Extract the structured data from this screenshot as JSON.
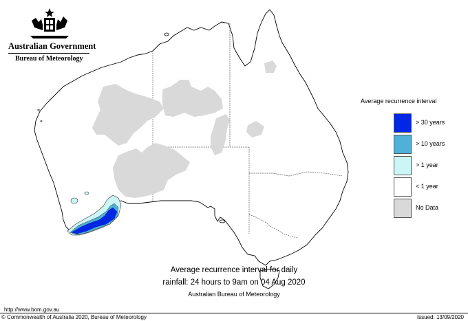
{
  "header": {
    "government": "Australian Government",
    "bureau": "Bureau of Meteorology"
  },
  "map": {
    "subject": "Australia",
    "colors": {
      "land": "#ffffff",
      "coast": "#000000",
      "state_border": "#555555",
      "no_data": "#d9d9d9",
      "gt_1_year": "#ccf5f5",
      "gt_10_years": "#4fb0d8",
      "gt_30_years": "#0026e6"
    }
  },
  "legend": {
    "title": "Average recurrence interval",
    "items": [
      {
        "label": "> 30 years",
        "color": "#0026e6"
      },
      {
        "label": "> 10 years",
        "color": "#4fb0d8"
      },
      {
        "label": "> 1 year",
        "color": "#ccf5f5"
      },
      {
        "label": "< 1 year",
        "color": "#ffffff"
      },
      {
        "label": "No Data",
        "color": "#d9d9d9"
      }
    ]
  },
  "caption": {
    "line1": "Average recurrence interval for daily",
    "line2": "rainfall: 24 hours to 9am on 04 Aug 2020",
    "line3": "Australian Bureau of Meteorology"
  },
  "footer": {
    "url": "http://www.bom.gov.au",
    "copyright": "© Commonwealth of Australia 2020, Bureau of Meteorology",
    "issued": "Issued: 13/09/2020"
  }
}
